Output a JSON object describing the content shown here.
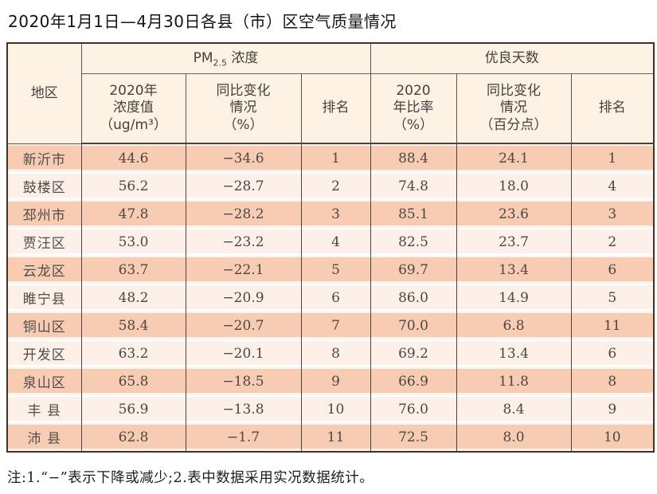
{
  "title": "2020年1月1日—4月30日各县（市）区空气质量情况",
  "table": {
    "header": {
      "region": "地区",
      "pm_group": {
        "prefix": "PM",
        "sub": "2.5",
        "suffix": " 浓度"
      },
      "good_days_group": "优良天数",
      "pm_value": "2020年\n浓度值\n（ug/m³）",
      "pm_change": "同比变化\n情况\n（%）",
      "pm_rank": "排名",
      "gd_ratio": "2020\n年比率\n（%）",
      "gd_change": "同比变化\n情况\n（百分点）",
      "gd_rank": "排名"
    },
    "rows": [
      {
        "region": "新沂市",
        "pm_value": "44.6",
        "pm_change": "−34.6",
        "pm_rank": "1",
        "gd_ratio": "88.4",
        "gd_change": "24.1",
        "gd_rank": "1"
      },
      {
        "region": "鼓楼区",
        "pm_value": "56.2",
        "pm_change": "−28.7",
        "pm_rank": "2",
        "gd_ratio": "74.8",
        "gd_change": "18.0",
        "gd_rank": "4"
      },
      {
        "region": "邳州市",
        "pm_value": "47.8",
        "pm_change": "−28.2",
        "pm_rank": "3",
        "gd_ratio": "85.1",
        "gd_change": "23.6",
        "gd_rank": "3"
      },
      {
        "region": "贾汪区",
        "pm_value": "53.0",
        "pm_change": "−23.2",
        "pm_rank": "4",
        "gd_ratio": "82.5",
        "gd_change": "23.7",
        "gd_rank": "2"
      },
      {
        "region": "云龙区",
        "pm_value": "63.7",
        "pm_change": "−22.1",
        "pm_rank": "5",
        "gd_ratio": "69.7",
        "gd_change": "13.4",
        "gd_rank": "6"
      },
      {
        "region": "睢宁县",
        "pm_value": "48.2",
        "pm_change": "−20.9",
        "pm_rank": "6",
        "gd_ratio": "86.0",
        "gd_change": "14.9",
        "gd_rank": "5"
      },
      {
        "region": "铜山区",
        "pm_value": "58.4",
        "pm_change": "−20.7",
        "pm_rank": "7",
        "gd_ratio": "70.0",
        "gd_change": "6.8",
        "gd_rank": "11"
      },
      {
        "region": "开发区",
        "pm_value": "63.2",
        "pm_change": "−20.1",
        "pm_rank": "8",
        "gd_ratio": "69.2",
        "gd_change": "13.4",
        "gd_rank": "6"
      },
      {
        "region": "泉山区",
        "pm_value": "65.8",
        "pm_change": "−18.5",
        "pm_rank": "9",
        "gd_ratio": "66.9",
        "gd_change": "11.8",
        "gd_rank": "8"
      },
      {
        "region": "丰 县",
        "pm_value": "56.9",
        "pm_change": "−13.8",
        "pm_rank": "10",
        "gd_ratio": "76.0",
        "gd_change": "8.4",
        "gd_rank": "9"
      },
      {
        "region": "沛 县",
        "pm_value": "62.8",
        "pm_change": "−1.7",
        "pm_rank": "11",
        "gd_ratio": "72.5",
        "gd_change": "8.0",
        "gd_rank": "10"
      }
    ]
  },
  "note": "注:1.“−”表示下降或减少;2.表中数据采用实况数据统计。",
  "colors": {
    "row_odd": "#f8ccb3",
    "row_even": "#fcf0e9",
    "header_bg": "#fdf2e3",
    "outer_border": "#42302b",
    "inner_border": "#4a433f",
    "table_text": "#4c4744"
  }
}
